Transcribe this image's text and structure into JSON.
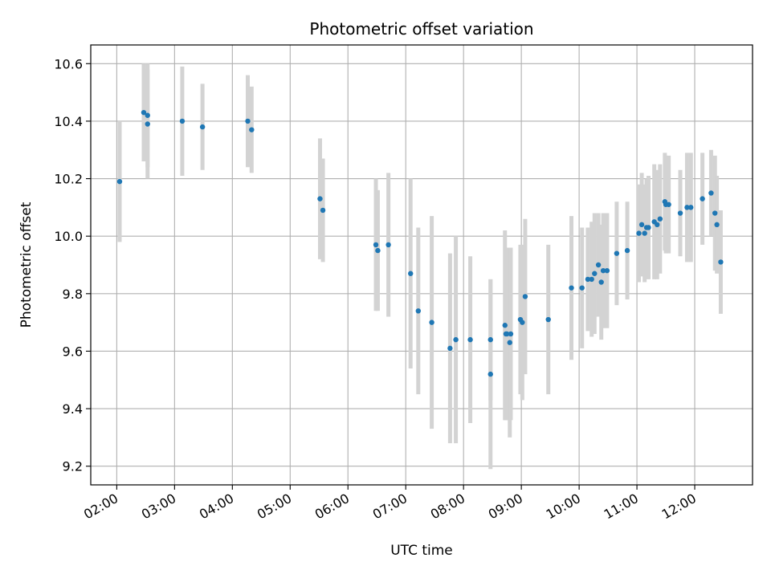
{
  "chart_data": {
    "type": "scatter",
    "title": "Photometric offset variation",
    "xlabel": "UTC time",
    "ylabel": "Photometric offset",
    "xlim_hours": [
      1.55,
      13.0
    ],
    "ylim": [
      9.135,
      10.665
    ],
    "grid": true,
    "x_tick_labels": [
      "02:00",
      "03:00",
      "04:00",
      "05:00",
      "06:00",
      "07:00",
      "08:00",
      "09:00",
      "10:00",
      "11:00",
      "12:00"
    ],
    "y_tick_labels": [
      "9.2",
      "9.4",
      "9.6",
      "9.8",
      "10.0",
      "10.2",
      "10.4",
      "10.6"
    ],
    "colors": {
      "point": "#1f77b4",
      "errorbar": "#d3d3d3",
      "grid": "#b0b0b0"
    },
    "series": [
      {
        "x": [
          "02:03",
          "02:28",
          "02:32",
          "02:32",
          "03:08",
          "03:29",
          "04:16",
          "04:20",
          "05:31",
          "05:34",
          "06:29",
          "06:31",
          "06:42",
          "07:05",
          "07:13",
          "07:27",
          "07:46",
          "07:52",
          "08:07",
          "08:28",
          "08:28",
          "08:43",
          "08:44",
          "08:45",
          "08:48",
          "08:49",
          "08:59",
          "09:01",
          "09:04",
          "09:28",
          "09:52",
          "10:03",
          "10:09",
          "10:13",
          "10:16",
          "10:20",
          "10:23",
          "10:25",
          "10:29",
          "10:39",
          "10:50",
          "11:02",
          "11:05",
          "11:08",
          "11:10",
          "11:12",
          "11:18",
          "11:21",
          "11:24",
          "11:29",
          "11:30",
          "11:33",
          "11:45",
          "11:52",
          "11:56",
          "12:08",
          "12:17",
          "12:21",
          "12:23",
          "12:27"
        ],
        "y": [
          10.19,
          10.43,
          10.39,
          10.42,
          10.4,
          10.38,
          10.4,
          10.37,
          10.13,
          10.09,
          9.97,
          9.95,
          9.97,
          9.87,
          9.74,
          9.7,
          9.61,
          9.64,
          9.64,
          9.64,
          9.52,
          9.69,
          9.66,
          9.66,
          9.63,
          9.66,
          9.71,
          9.7,
          9.79,
          9.71,
          9.82,
          9.82,
          9.85,
          9.85,
          9.87,
          9.9,
          9.84,
          9.88,
          9.88,
          9.94,
          9.95,
          10.01,
          10.04,
          10.01,
          10.03,
          10.03,
          10.05,
          10.04,
          10.06,
          10.12,
          10.11,
          10.11,
          10.08,
          10.1,
          10.1,
          10.13,
          10.15,
          10.08,
          10.04,
          9.91
        ],
        "err": [
          0.21,
          0.17,
          0.19,
          0.18,
          0.19,
          0.15,
          0.16,
          0.15,
          0.21,
          0.18,
          0.23,
          0.21,
          0.25,
          0.33,
          0.29,
          0.37,
          0.33,
          0.36,
          0.29,
          0.21,
          0.33,
          0.33,
          0.3,
          0.3,
          0.33,
          0.3,
          0.26,
          0.27,
          0.27,
          0.26,
          0.25,
          0.21,
          0.18,
          0.2,
          0.21,
          0.18,
          0.2,
          0.2,
          0.2,
          0.18,
          0.17,
          0.17,
          0.18,
          0.17,
          0.17,
          0.18,
          0.2,
          0.19,
          0.19,
          0.17,
          0.17,
          0.17,
          0.15,
          0.19,
          0.19,
          0.16,
          0.15,
          0.2,
          0.17,
          0.18
        ]
      }
    ]
  }
}
